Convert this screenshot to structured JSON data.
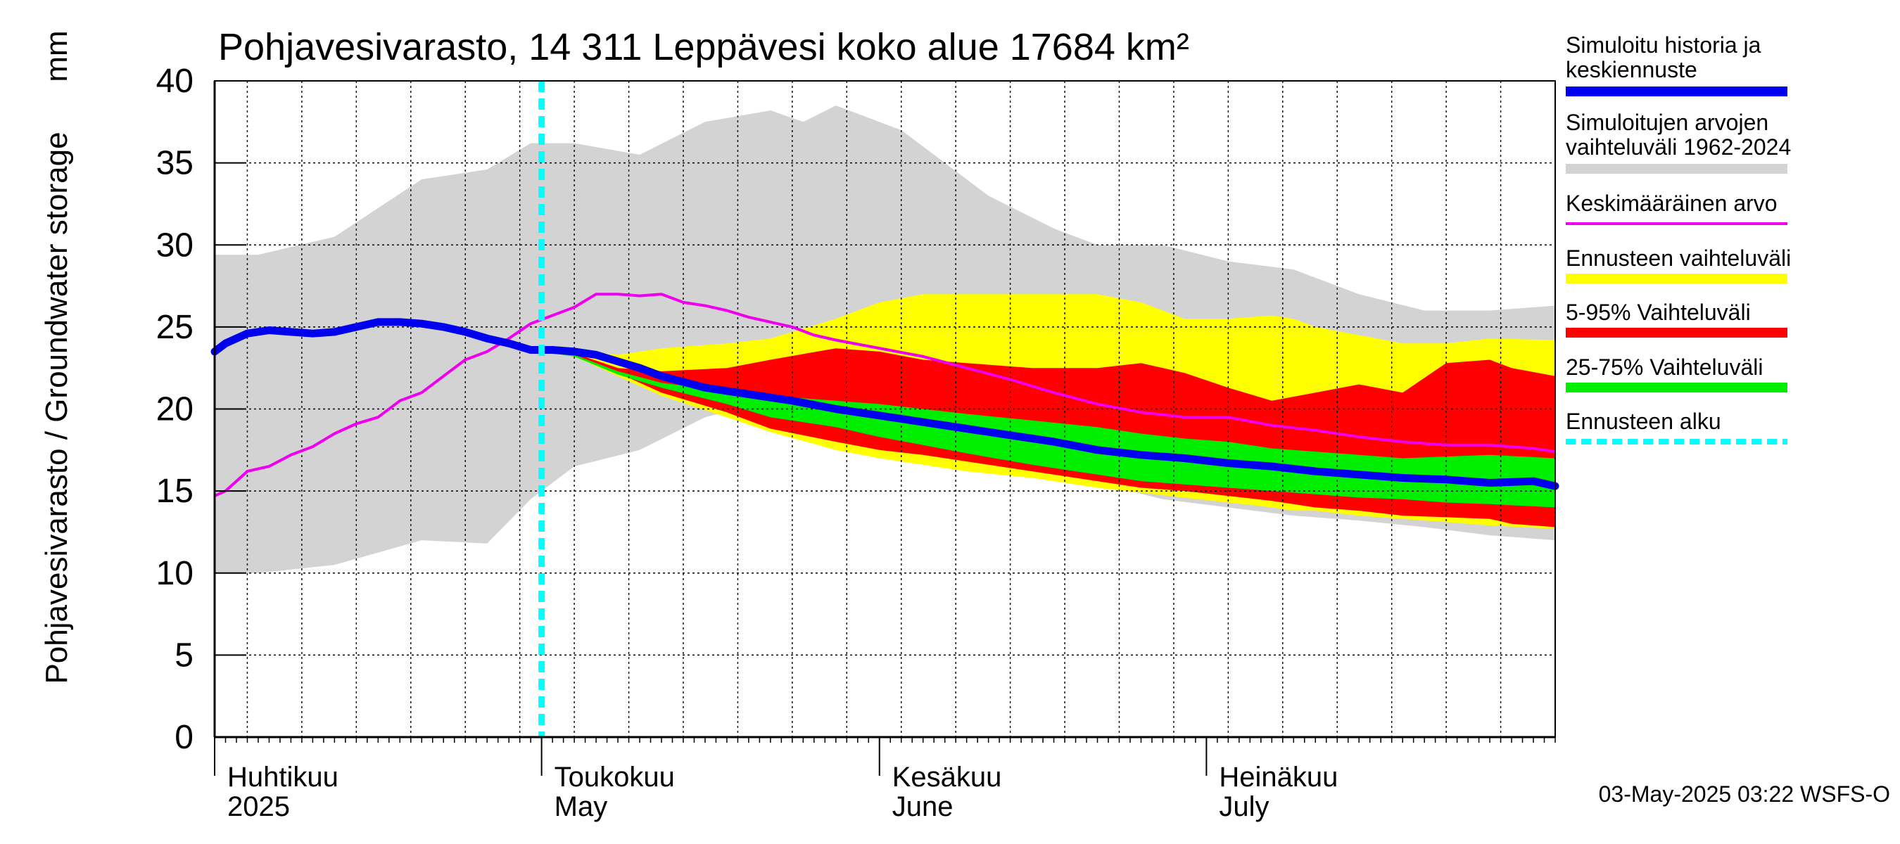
{
  "chart_data": {
    "type": "area",
    "title": "Pohjavesivarasto, 14 311 Leppävesi koko alue 17684 km²",
    "ylabel": "Pohjavesivarasto / Groundwater storage",
    "yunit": "mm",
    "ylim": [
      0,
      40
    ],
    "yticks": [
      "0",
      "5",
      "10",
      "15",
      "20",
      "25",
      "30",
      "35",
      "40"
    ],
    "xlim": [
      1,
      124
    ],
    "x_unit": "day of period (Apr 1 = 1)",
    "xticks": [
      {
        "day": 1,
        "line1": "Huhtikuu",
        "line2": "2025"
      },
      {
        "day": 31,
        "line1": "Toukokuu",
        "line2": "May"
      },
      {
        "day": 62,
        "line1": "Kesäkuu",
        "line2": "June"
      },
      {
        "day": 92,
        "line1": "Heinäkuu",
        "line2": "July"
      }
    ],
    "forecast_start_day": 31,
    "timestamp": "03-May-2025 03:22 WSFS-O",
    "colors": {
      "history": "#0000ee",
      "sim_range": "#d3d3d3",
      "mean": "#ee00ee",
      "forecast_range": "#ffff00",
      "p5_95": "#ff0000",
      "p25_75": "#00ee00",
      "forecast_start": "#00ffff"
    },
    "legend": [
      {
        "key": "history",
        "label1": "Simuloitu historia ja",
        "label2": "keskiennuste"
      },
      {
        "key": "sim_range",
        "label1": "Simuloitujen arvojen",
        "label2": "vaihteluväli 1962-2024"
      },
      {
        "key": "mean",
        "label1": "Keskimääräinen arvo",
        "label2": ""
      },
      {
        "key": "forecast_range",
        "label1": "Ennusteen vaihteluväli",
        "label2": ""
      },
      {
        "key": "p5_95",
        "label1": "5-95% Vaihteluväli",
        "label2": ""
      },
      {
        "key": "p25_75",
        "label1": "25-75% Vaihteluväli",
        "label2": ""
      },
      {
        "key": "forecast_start",
        "label1": "Ennusteen alku",
        "label2": ""
      }
    ],
    "series": {
      "sim_range": {
        "x": [
          1,
          5,
          12,
          20,
          26,
          30,
          34,
          40,
          46,
          52,
          55,
          58,
          64,
          68,
          72,
          78,
          82,
          88,
          94,
          100,
          106,
          112,
          118,
          124
        ],
        "upper": [
          29.4,
          29.4,
          30.5,
          34.0,
          34.6,
          36.2,
          36.2,
          35.5,
          37.5,
          38.2,
          37.5,
          38.5,
          37.0,
          35.0,
          33.0,
          31.0,
          30.0,
          30.0,
          29.0,
          28.5,
          27.0,
          26.0,
          26.0,
          26.3
        ],
        "lower": [
          10.0,
          10.0,
          10.5,
          12.0,
          11.8,
          14.5,
          16.5,
          17.5,
          19.5,
          20.5,
          21.0,
          20.0,
          18.5,
          18.0,
          17.0,
          16.0,
          15.5,
          14.5,
          14.0,
          13.5,
          13.2,
          12.8,
          12.3,
          12.0
        ]
      },
      "history": {
        "x": [
          1,
          2,
          4,
          6,
          8,
          10,
          12,
          14,
          16,
          18,
          20,
          22,
          24,
          26,
          28,
          30,
          32,
          34,
          36,
          38,
          40,
          42,
          46,
          50,
          54,
          58,
          62,
          66,
          70,
          74,
          78,
          82,
          86,
          90,
          94,
          98,
          102,
          106,
          110,
          114,
          118,
          122,
          124
        ],
        "y": [
          23.5,
          24.0,
          24.6,
          24.8,
          24.7,
          24.6,
          24.7,
          25.0,
          25.3,
          25.3,
          25.2,
          25.0,
          24.7,
          24.3,
          24.0,
          23.6,
          23.6,
          23.5,
          23.3,
          22.9,
          22.5,
          22.0,
          21.3,
          20.9,
          20.5,
          20.0,
          19.6,
          19.2,
          18.8,
          18.4,
          18.0,
          17.5,
          17.2,
          17.0,
          16.7,
          16.5,
          16.2,
          16.0,
          15.8,
          15.7,
          15.5,
          15.6,
          15.3
        ]
      },
      "mean": {
        "x": [
          1,
          2,
          4,
          6,
          8,
          10,
          12,
          14,
          16,
          18,
          20,
          22,
          24,
          26,
          28,
          30,
          32,
          34,
          36,
          38,
          40,
          42,
          44,
          46,
          48,
          50,
          52,
          54,
          56,
          58,
          62,
          66,
          70,
          74,
          78,
          82,
          86,
          90,
          94,
          98,
          102,
          106,
          110,
          114,
          118,
          122,
          124
        ],
        "y": [
          14.7,
          15.0,
          16.2,
          16.5,
          17.2,
          17.7,
          18.5,
          19.1,
          19.5,
          20.5,
          21.0,
          22.0,
          23.0,
          23.5,
          24.3,
          25.2,
          25.7,
          26.2,
          27.0,
          27.0,
          26.9,
          27.0,
          26.5,
          26.3,
          26.0,
          25.6,
          25.3,
          25.0,
          24.5,
          24.2,
          23.7,
          23.2,
          22.5,
          21.8,
          21.0,
          20.3,
          19.8,
          19.5,
          19.5,
          19.0,
          18.7,
          18.3,
          18.0,
          17.8,
          17.8,
          17.6,
          17.4
        ]
      },
      "forecast_range": {
        "x": [
          31,
          34,
          38,
          42,
          48,
          52,
          58,
          62,
          66,
          70,
          76,
          82,
          86,
          90,
          94,
          98,
          100,
          102,
          106,
          110,
          114,
          118,
          124
        ],
        "upper": [
          23.7,
          23.6,
          23.3,
          23.7,
          24.0,
          24.3,
          25.5,
          26.5,
          27.0,
          27.0,
          27.0,
          27.0,
          26.5,
          25.5,
          25.5,
          25.7,
          25.5,
          25.0,
          24.5,
          24.0,
          24.0,
          24.3,
          24.2
        ],
        "lower": [
          23.5,
          23.2,
          22.0,
          20.8,
          19.5,
          18.6,
          17.5,
          17.0,
          16.6,
          16.2,
          15.8,
          15.2,
          14.9,
          14.6,
          14.3,
          14.0,
          13.8,
          13.8,
          13.5,
          13.3,
          13.1,
          12.9,
          12.7
        ]
      },
      "p5_95": {
        "x": [
          31,
          34,
          38,
          42,
          48,
          52,
          58,
          62,
          66,
          70,
          76,
          82,
          86,
          90,
          94,
          98,
          102,
          106,
          110,
          114,
          118,
          120,
          124
        ],
        "upper": [
          23.6,
          23.4,
          22.5,
          22.3,
          22.5,
          23.0,
          23.7,
          23.5,
          23.0,
          22.8,
          22.5,
          22.5,
          22.8,
          22.2,
          21.3,
          20.5,
          21.0,
          21.5,
          21.0,
          22.8,
          23.0,
          22.5,
          22.0
        ],
        "lower": [
          23.5,
          23.2,
          22.2,
          21.0,
          19.8,
          18.8,
          18.0,
          17.5,
          17.2,
          16.8,
          16.2,
          15.6,
          15.2,
          15.0,
          14.7,
          14.4,
          14.0,
          13.8,
          13.5,
          13.4,
          13.3,
          13.0,
          12.8
        ]
      },
      "p25_75": {
        "x": [
          31,
          34,
          38,
          42,
          48,
          52,
          58,
          62,
          66,
          70,
          76,
          82,
          86,
          90,
          94,
          98,
          102,
          106,
          110,
          114,
          118,
          124
        ],
        "upper": [
          23.6,
          23.3,
          22.3,
          21.6,
          21.1,
          20.8,
          20.5,
          20.3,
          20.0,
          19.7,
          19.3,
          18.9,
          18.5,
          18.2,
          18.0,
          17.6,
          17.4,
          17.2,
          17.0,
          17.1,
          17.2,
          17.0
        ],
        "lower": [
          23.5,
          23.2,
          22.1,
          21.3,
          20.3,
          19.5,
          18.9,
          18.3,
          17.8,
          17.3,
          16.6,
          16.0,
          15.6,
          15.4,
          15.2,
          15.0,
          14.8,
          14.6,
          14.5,
          14.3,
          14.2,
          14.0
        ]
      }
    }
  }
}
